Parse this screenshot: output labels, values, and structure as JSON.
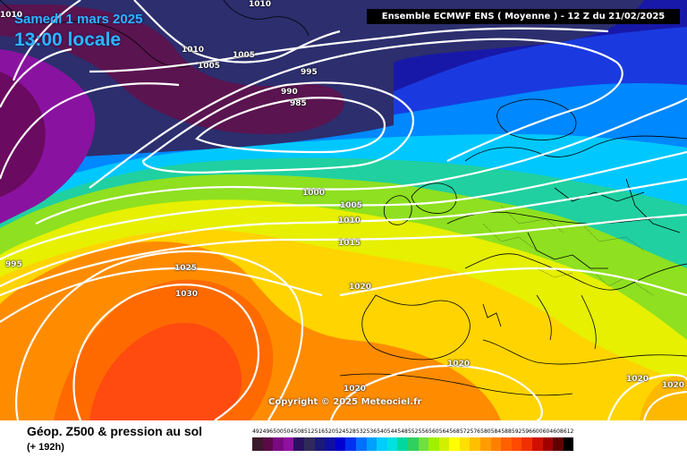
{
  "header": {
    "date": "Samedi 1 mars 2025",
    "time": "13:00 locale",
    "model": "Ensemble ECMWF ENS  ( Moyenne )  -  12 Z du 21/02/2025",
    "copyright": "Copyright © 2025 Meteociel.fr"
  },
  "footer": {
    "title": "Géop. Z500 & pression au sol",
    "subtitle": "(+ 192h)"
  },
  "isobar_labels": [
    "1010",
    "1010",
    "1005",
    "1005",
    "995",
    "990",
    "985",
    "1000",
    "1005",
    "1010",
    "1015",
    "995",
    "1025",
    "1030",
    "1020",
    "1020",
    "1020",
    "1020",
    "1020"
  ],
  "scale": {
    "values": [
      "492",
      "496",
      "500",
      "504",
      "508",
      "512",
      "516",
      "520",
      "524",
      "528",
      "532",
      "536",
      "540",
      "544",
      "548",
      "552",
      "556",
      "560",
      "564",
      "568",
      "572",
      "576",
      "580",
      "584",
      "588",
      "592",
      "596",
      "600",
      "604",
      "608",
      "612"
    ],
    "colors": [
      "#3a1a2a",
      "#5a0a45",
      "#7a0a80",
      "#9010a0",
      "#2a1060",
      "#302a5a",
      "#1a1a78",
      "#1010a0",
      "#0000d0",
      "#0030f0",
      "#0070ff",
      "#00a0ff",
      "#00ccff",
      "#00e0e0",
      "#00d8a0",
      "#30d060",
      "#70e040",
      "#a0f000",
      "#d0f000",
      "#ffff00",
      "#ffe000",
      "#ffc000",
      "#ff9c00",
      "#ff8000",
      "#ff6000",
      "#ff4a00",
      "#f03000",
      "#d01000",
      "#a00000",
      "#600000",
      "#000000"
    ]
  }
}
